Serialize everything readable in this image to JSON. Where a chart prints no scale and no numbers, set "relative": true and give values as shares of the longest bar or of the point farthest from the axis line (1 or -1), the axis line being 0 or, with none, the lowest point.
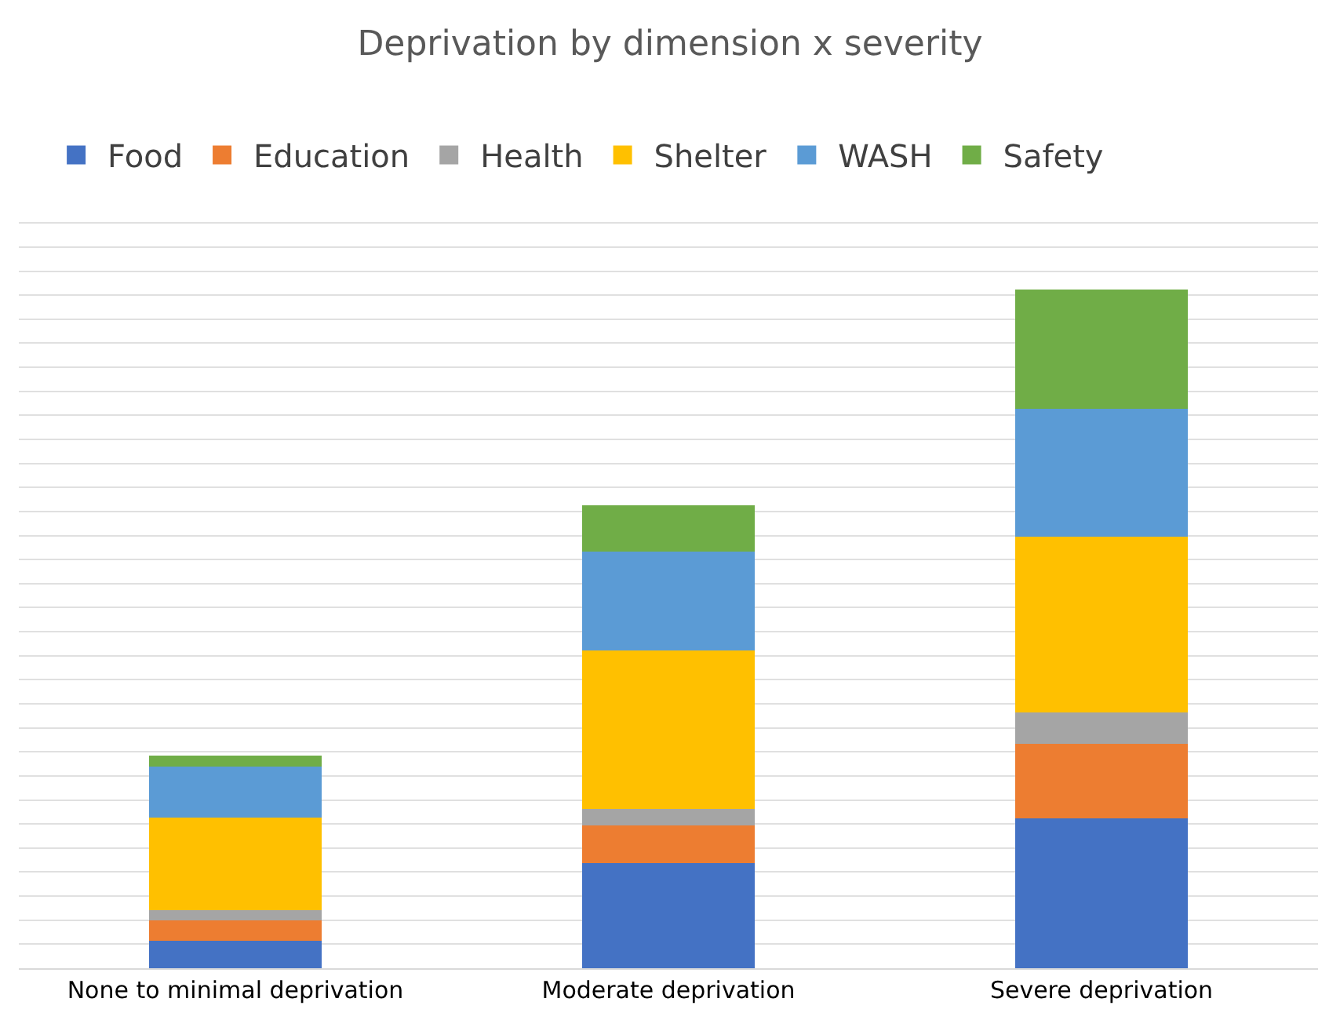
{
  "chart_data": {
    "type": "bar",
    "title": "Deprivation by dimension x severity",
    "categories": [
      "None to minimal deprivation",
      "Moderate deprivation",
      "Severe deprivation"
    ],
    "stacked": true,
    "relative": true,
    "grid": "y",
    "legend": "top",
    "series": [
      {
        "name": "Food",
        "color": "#4472c4",
        "values": [
          0.041,
          0.155,
          0.221
        ]
      },
      {
        "name": "Education",
        "color": "#ed7d31",
        "values": [
          0.03,
          0.055,
          0.11
        ]
      },
      {
        "name": "Health",
        "color": "#a5a5a5",
        "values": [
          0.014,
          0.025,
          0.046
        ]
      },
      {
        "name": "Shelter",
        "color": "#ffc000",
        "values": [
          0.137,
          0.233,
          0.258
        ]
      },
      {
        "name": "WASH",
        "color": "#5b9bd5",
        "values": [
          0.075,
          0.146,
          0.189
        ]
      },
      {
        "name": "Safety",
        "color": "#70ad47",
        "values": [
          0.016,
          0.068,
          0.176
        ]
      }
    ]
  }
}
